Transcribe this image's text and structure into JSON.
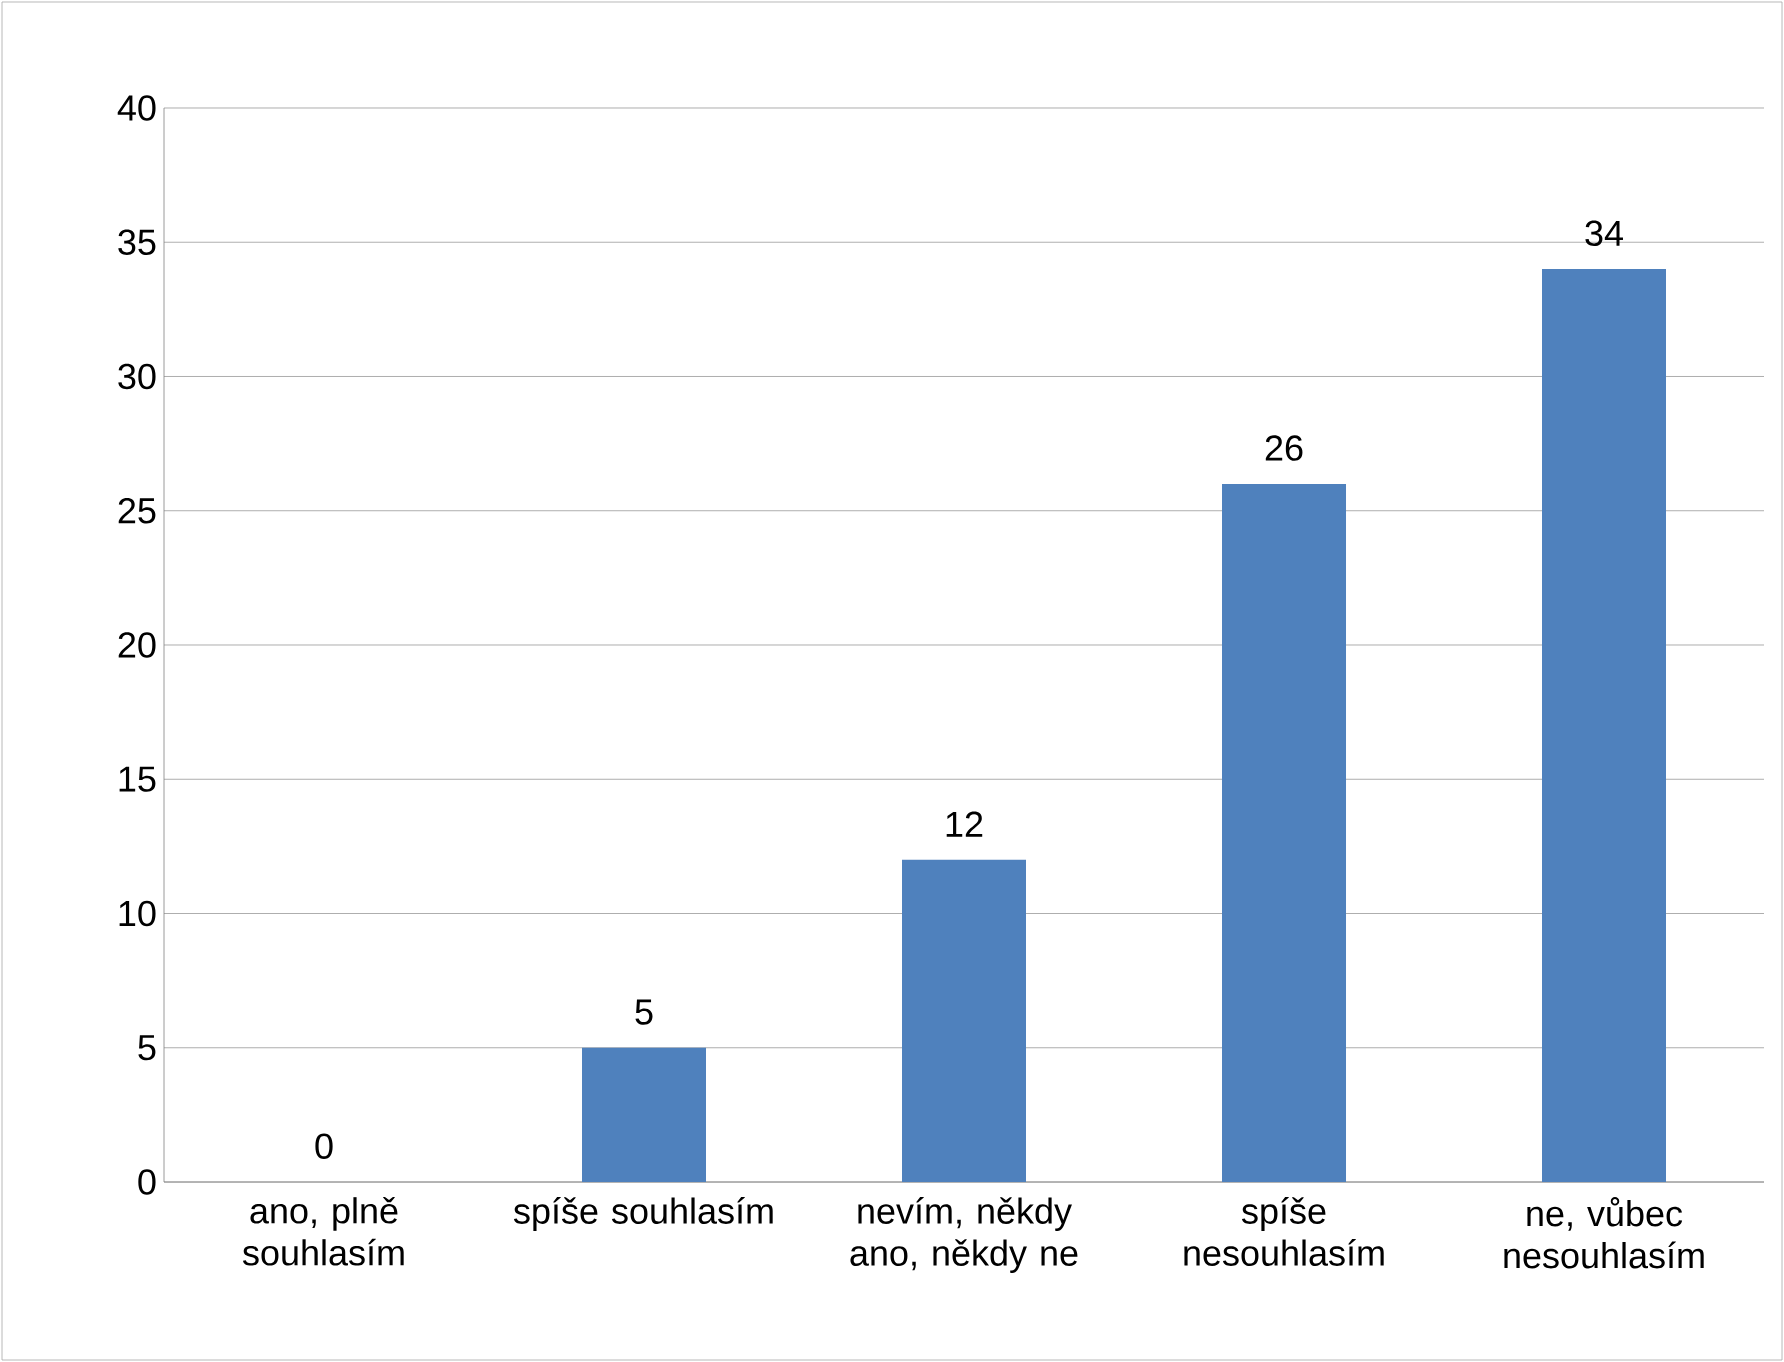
{
  "chart_data": {
    "type": "bar",
    "categories": [
      "ano, plně souhlasím",
      "spíše souhlasím",
      "nevím, někdy ano, někdy ne",
      "spíše nesouhlasím",
      "ne, vůbec nesouhlasím"
    ],
    "values": [
      0,
      5,
      12,
      26,
      34
    ],
    "color": "#4f81bd",
    "ylim": [
      0,
      40
    ],
    "yticks": [
      0,
      5,
      10,
      15,
      20,
      25,
      30,
      35,
      40
    ],
    "grid": "y",
    "data_labels": true
  }
}
